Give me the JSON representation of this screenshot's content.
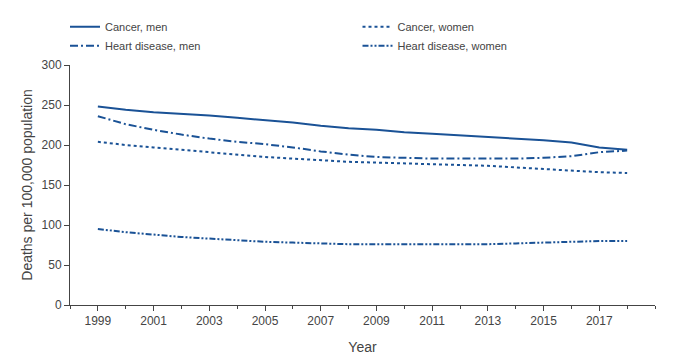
{
  "chart_data": {
    "type": "line",
    "xlabel": "Year",
    "ylabel": "Deaths per 100,000 population",
    "x": [
      1999,
      2000,
      2001,
      2002,
      2003,
      2004,
      2005,
      2006,
      2007,
      2008,
      2009,
      2010,
      2011,
      2012,
      2013,
      2014,
      2015,
      2016,
      2017,
      2018
    ],
    "series": [
      {
        "name": "Cancer, men",
        "color": "#1a5296",
        "line_style": "solid",
        "values": [
          248,
          244,
          241,
          239,
          237,
          234,
          231,
          228,
          224,
          221,
          219,
          216,
          214,
          212,
          210,
          208,
          206,
          203,
          197,
          194
        ]
      },
      {
        "name": "Cancer, women",
        "color": "#1a5296",
        "line_style": "dotted",
        "values": [
          204,
          200,
          197,
          194,
          191,
          188,
          185,
          183,
          181,
          179,
          178,
          177,
          176,
          175,
          174,
          172,
          170,
          168,
          166,
          165
        ]
      },
      {
        "name": "Heart disease, men",
        "color": "#1a5296",
        "line_style": "dashdot",
        "values": [
          236,
          226,
          219,
          213,
          208,
          204,
          201,
          197,
          192,
          188,
          185,
          184,
          183,
          183,
          183,
          183,
          184,
          186,
          191,
          193
        ]
      },
      {
        "name": "Heart disease, women",
        "color": "#1a5296",
        "line_style": "dashdotdot",
        "values": [
          95,
          91,
          88,
          85,
          83,
          81,
          79,
          78,
          77,
          76,
          76,
          76,
          76,
          76,
          76,
          77,
          78,
          79,
          80,
          80
        ]
      }
    ],
    "xlim": [
      1998,
      2019
    ],
    "xticks": [
      1999,
      2001,
      2003,
      2005,
      2007,
      2009,
      2011,
      2013,
      2015,
      2017
    ],
    "ylim": [
      0,
      300
    ],
    "yticks": [
      0,
      50,
      100,
      150,
      200,
      250,
      300
    ],
    "grid": false,
    "legend": "upper right"
  }
}
